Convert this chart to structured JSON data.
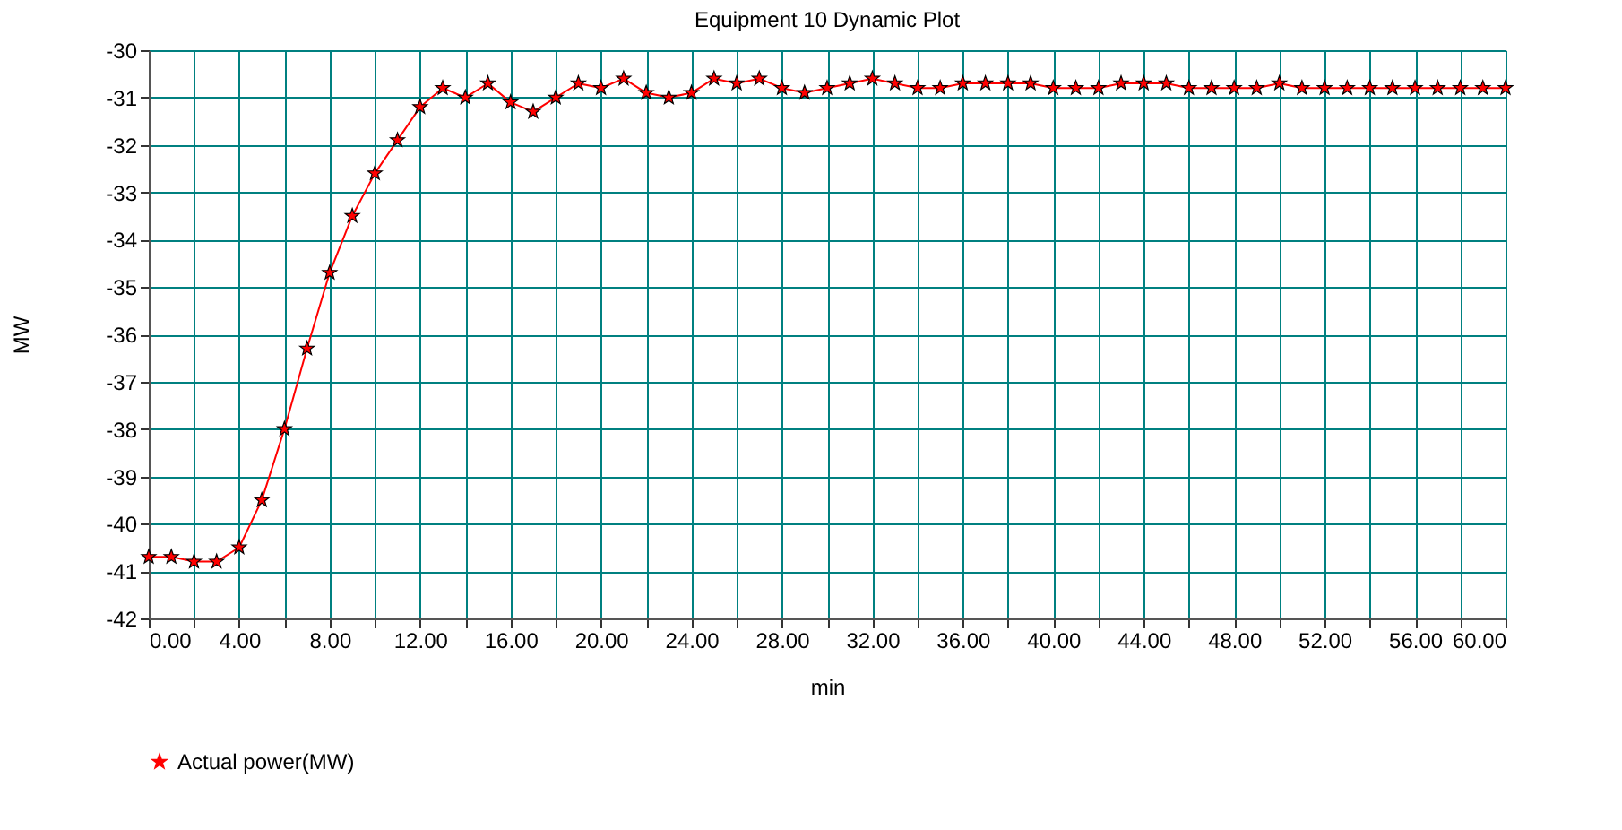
{
  "chart_data": {
    "type": "line",
    "title": "Equipment 10 Dynamic Plot",
    "xlabel": "min",
    "ylabel": "MW",
    "x": [
      0,
      1,
      2,
      3,
      4,
      5,
      6,
      7,
      8,
      9,
      10,
      11,
      12,
      13,
      14,
      15,
      16,
      17,
      18,
      19,
      20,
      21,
      22,
      23,
      24,
      25,
      26,
      27,
      28,
      29,
      30,
      31,
      32,
      33,
      34,
      35,
      36,
      37,
      38,
      39,
      40,
      41,
      42,
      43,
      44,
      45,
      46,
      47,
      48,
      49,
      50,
      51,
      52,
      53,
      54,
      55,
      56,
      57,
      58,
      59,
      60
    ],
    "series": [
      {
        "name": "Actual power(MW)",
        "color": "#ff0000",
        "values": [
          -40.7,
          -40.7,
          -40.8,
          -40.8,
          -40.5,
          -39.5,
          -38.0,
          -36.3,
          -34.7,
          -33.5,
          -32.6,
          -31.9,
          -31.2,
          -30.8,
          -31.0,
          -30.7,
          -31.1,
          -31.3,
          -31.0,
          -30.7,
          -30.8,
          -30.6,
          -30.9,
          -31.0,
          -30.9,
          -30.6,
          -30.7,
          -30.6,
          -30.8,
          -30.9,
          -30.8,
          -30.7,
          -30.6,
          -30.7,
          -30.8,
          -30.8,
          -30.7,
          -30.7,
          -30.7,
          -30.7,
          -30.8,
          -30.8,
          -30.8,
          -30.7,
          -30.7,
          -30.7,
          -30.8,
          -30.8,
          -30.8,
          -30.8,
          -30.7,
          -30.8,
          -30.8,
          -30.8,
          -30.8,
          -30.8,
          -30.8,
          -30.8,
          -30.8,
          -30.8,
          -30.8
        ]
      }
    ],
    "xlim": [
      0,
      60
    ],
    "xticks": [
      {
        "value": 0,
        "label": "0.00"
      },
      {
        "value": 2,
        "label": null
      },
      {
        "value": 4,
        "label": "4.00"
      },
      {
        "value": 6,
        "label": null
      },
      {
        "value": 8,
        "label": "8.00"
      },
      {
        "value": 10,
        "label": null
      },
      {
        "value": 12,
        "label": "12.00"
      },
      {
        "value": 14,
        "label": null
      },
      {
        "value": 16,
        "label": "16.00"
      },
      {
        "value": 18,
        "label": null
      },
      {
        "value": 20,
        "label": "20.00"
      },
      {
        "value": 22,
        "label": null
      },
      {
        "value": 24,
        "label": "24.00"
      },
      {
        "value": 26,
        "label": null
      },
      {
        "value": 28,
        "label": "28.00"
      },
      {
        "value": 30,
        "label": null
      },
      {
        "value": 32,
        "label": "32.00"
      },
      {
        "value": 34,
        "label": null
      },
      {
        "value": 36,
        "label": "36.00"
      },
      {
        "value": 38,
        "label": null
      },
      {
        "value": 40,
        "label": "40.00"
      },
      {
        "value": 42,
        "label": null
      },
      {
        "value": 44,
        "label": "44.00"
      },
      {
        "value": 46,
        "label": null
      },
      {
        "value": 48,
        "label": "48.00"
      },
      {
        "value": 50,
        "label": null
      },
      {
        "value": 52,
        "label": "52.00"
      },
      {
        "value": 54,
        "label": null
      },
      {
        "value": 56,
        "label": "56.00"
      },
      {
        "value": 58,
        "label": null
      },
      {
        "value": 60,
        "label": "60.00"
      }
    ],
    "ylim": [
      -42,
      -30
    ],
    "yticks": [
      -42,
      -41,
      -40,
      -39,
      -38,
      -37,
      -36,
      -35,
      -34,
      -33,
      -32,
      -31,
      -30
    ],
    "grid": true,
    "legend": "bottom",
    "marker": "star",
    "line_style": "solid"
  }
}
